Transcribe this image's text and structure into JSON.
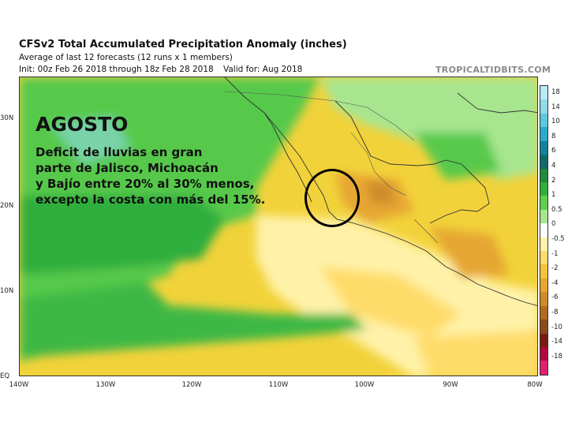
{
  "header": {
    "title": "CFSv2 Total Accumulated Precipitation Anomaly (inches)",
    "subtitle": "Average of last 12 forecasts (12 runs x 1 members)",
    "init": "Init: 00z Feb 26 2018 through 18z Feb 28 2018",
    "valid": "Valid for: Aug 2018",
    "brand": "TROPICALTIDBITS.COM"
  },
  "map": {
    "lat_labels": [
      "30N",
      "20N",
      "10N",
      "EQ"
    ],
    "lon_labels": [
      "140W",
      "130W",
      "120W",
      "110W",
      "100W",
      "90W",
      "80W"
    ]
  },
  "colorbar": {
    "labels": [
      "18",
      "14",
      "10",
      "8",
      "6",
      "4",
      "2",
      "1",
      "0.5",
      "0",
      "-0.5",
      "-1",
      "-2",
      "-4",
      "-6",
      "-8",
      "-10",
      "-14",
      "-18"
    ],
    "colors": [
      "#b8ebf4",
      "#8fdbe8",
      "#5cc7dd",
      "#2aa9c9",
      "#12839e",
      "#0f6b6b",
      "#1f8a3a",
      "#2fae3a",
      "#5fcf4b",
      "#a7e58f",
      "#ffffff",
      "#fff2a8",
      "#ffdc6a",
      "#f5c23e",
      "#e6a630",
      "#cf8a2a",
      "#b36a22",
      "#8c4a18",
      "#7a1c12",
      "#b00a3e",
      "#e0206e"
    ]
  },
  "overlay": {
    "title": "AGOSTO",
    "line1": "Deficit de lluvias en gran",
    "line2": "parte de Jalisco, Michoacán",
    "line3": "y Bajío entre 20% al 30% menos,",
    "line4": "excepto la costa con más del 15%."
  }
}
